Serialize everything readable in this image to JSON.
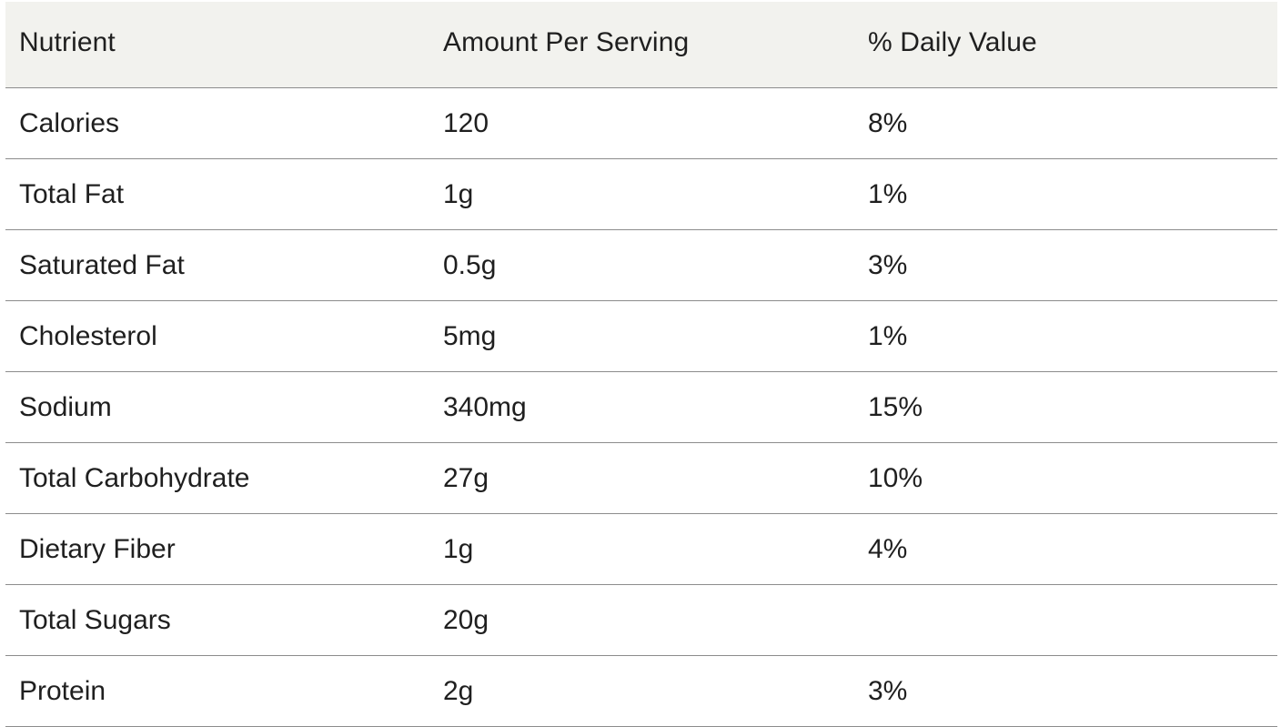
{
  "table": {
    "headers": [
      "Nutrient",
      "Amount Per Serving",
      "% Daily Value"
    ],
    "rows": [
      [
        "Calories",
        "120",
        "8%"
      ],
      [
        "Total Fat",
        "1g",
        "1%"
      ],
      [
        "Saturated Fat",
        "0.5g",
        "3%"
      ],
      [
        "Cholesterol",
        "5mg",
        "1%"
      ],
      [
        "Sodium",
        "340mg",
        "15%"
      ],
      [
        "Total Carbohydrate",
        "27g",
        "10%"
      ],
      [
        "Dietary Fiber",
        "1g",
        "4%"
      ],
      [
        "Total Sugars",
        "20g",
        ""
      ],
      [
        "Protein",
        "2g",
        "3%"
      ]
    ]
  }
}
